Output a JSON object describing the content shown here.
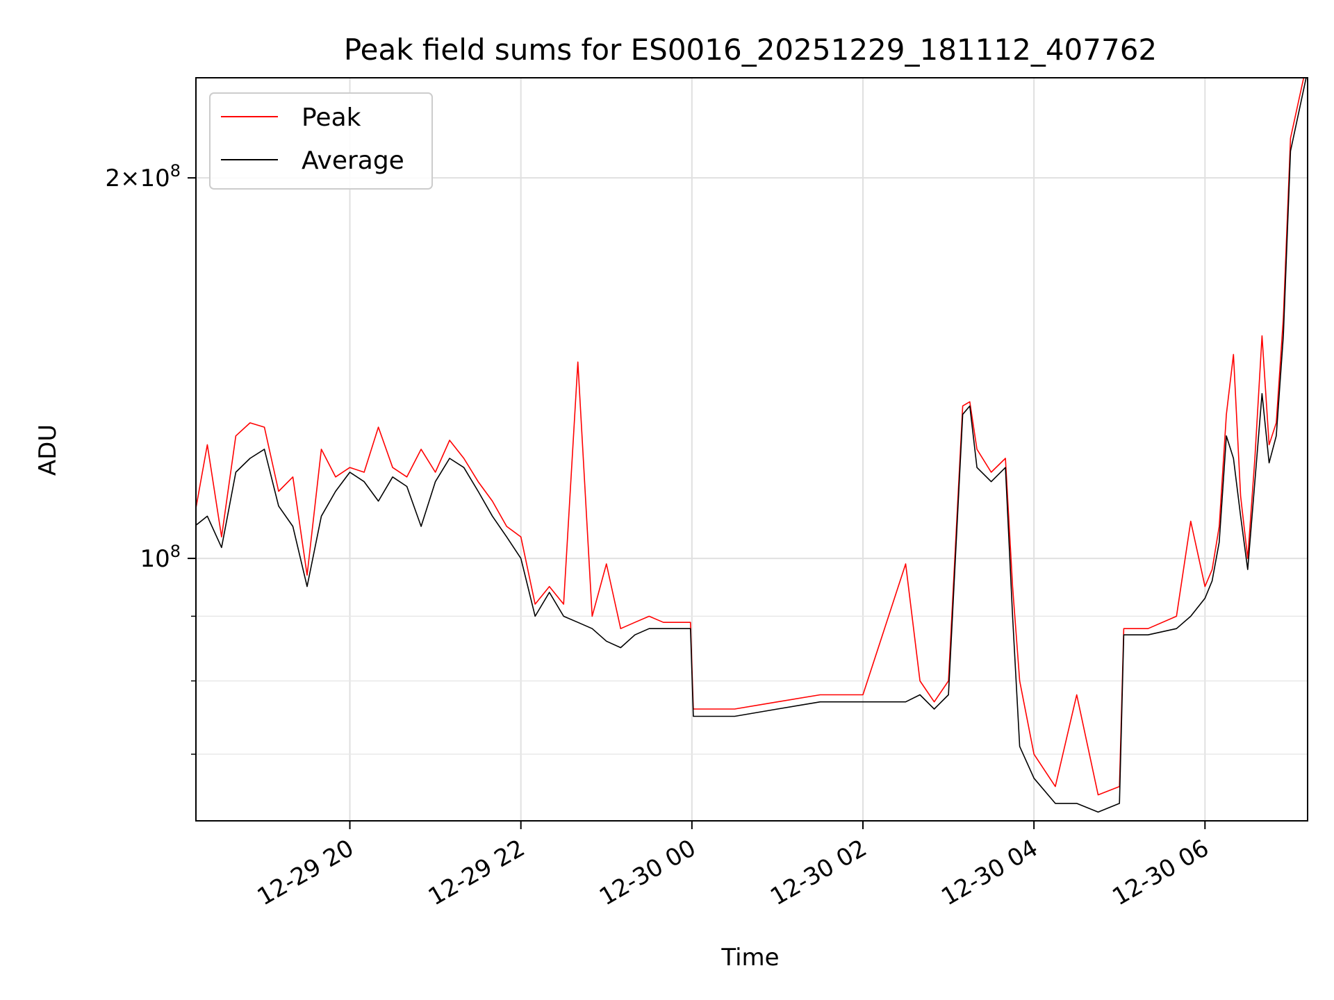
{
  "chart_data": {
    "type": "line",
    "title": "Peak field sums for ES0016_20251229_181112_407762",
    "xlabel": "Time",
    "ylabel": "ADU",
    "x_start": "2025-12-29 18:11",
    "x_end": "2025-12-30 07:11",
    "xlim_hours_from_midnight_dec29": [
      18.2,
      31.2
    ],
    "yscale": "log",
    "ylim": [
      62000000,
      240000000
    ],
    "grid": true,
    "legend_placement": "top-left",
    "x_tick_labels": [
      "12-29 20",
      "12-29 22",
      "12-30 00",
      "12-30 02",
      "12-30 04",
      "12-30 06"
    ],
    "y_tick_labels": [
      "10^8",
      "2×10^8"
    ],
    "colors": {
      "Peak": "#ff0000",
      "Average": "#000000"
    },
    "series": [
      {
        "name": "Average",
        "x": [
          "12-29 18:11",
          "12-29 18:20",
          "12-29 18:30",
          "12-29 18:40",
          "12-29 18:50",
          "12-29 19:00",
          "12-29 19:10",
          "12-29 19:20",
          "12-29 19:30",
          "12-29 19:40",
          "12-29 19:50",
          "12-29 20:00",
          "12-29 20:10",
          "12-29 20:20",
          "12-29 20:30",
          "12-29 20:40",
          "12-29 20:50",
          "12-29 21:00",
          "12-29 21:10",
          "12-29 21:20",
          "12-29 21:30",
          "12-29 21:40",
          "12-29 21:50",
          "12-29 22:00",
          "12-29 22:10",
          "12-29 22:20",
          "12-29 22:30",
          "12-29 22:40",
          "12-29 22:50",
          "12-29 23:00",
          "12-29 23:10",
          "12-29 23:20",
          "12-29 23:30",
          "12-29 23:40",
          "12-29 23:50",
          "12-29 23:59",
          "12-30 00:01",
          "12-30 00:30",
          "12-30 01:00",
          "12-30 01:30",
          "12-30 02:00",
          "12-30 02:30",
          "12-30 02:40",
          "12-30 02:50",
          "12-30 03:00",
          "12-30 03:10",
          "12-30 03:15",
          "12-30 03:20",
          "12-30 03:30",
          "12-30 03:40",
          "12-30 03:45",
          "12-30 03:50",
          "12-30 04:00",
          "12-30 04:15",
          "12-30 04:30",
          "12-30 04:45",
          "12-30 05:00",
          "12-30 05:03",
          "12-30 05:20",
          "12-30 05:40",
          "12-30 05:50",
          "12-30 06:00",
          "12-30 06:05",
          "12-30 06:10",
          "12-30 06:15",
          "12-30 06:20",
          "12-30 06:25",
          "12-30 06:30",
          "12-30 06:35",
          "12-30 06:40",
          "12-30 06:45",
          "12-30 06:50",
          "12-30 06:55",
          "12-30 07:00",
          "12-30 07:11"
        ],
        "y": [
          106000000,
          108000000,
          102000000,
          117000000,
          120000000,
          122000000,
          110000000,
          106000000,
          95000000,
          108000000,
          113000000,
          117000000,
          115000000,
          111000000,
          116000000,
          114000000,
          106000000,
          115000000,
          120000000,
          118000000,
          113000000,
          108000000,
          104000000,
          100000000,
          90000000,
          94000000,
          90000000,
          89000000,
          88000000,
          86000000,
          85000000,
          87000000,
          88000000,
          88000000,
          88000000,
          88000000,
          75000000,
          75000000,
          76000000,
          77000000,
          77000000,
          77000000,
          78000000,
          76000000,
          78000000,
          130000000,
          132000000,
          118000000,
          115000000,
          118000000,
          90000000,
          71000000,
          67000000,
          64000000,
          64000000,
          63000000,
          64000000,
          87000000,
          87000000,
          88000000,
          90000000,
          93000000,
          96000000,
          103000000,
          125000000,
          120000000,
          108000000,
          98000000,
          115000000,
          135000000,
          119000000,
          125000000,
          150000000,
          210000000,
          240000000
        ]
      },
      {
        "name": "Peak",
        "x": [
          "12-29 18:11",
          "12-29 18:20",
          "12-29 18:30",
          "12-29 18:40",
          "12-29 18:50",
          "12-29 19:00",
          "12-29 19:10",
          "12-29 19:20",
          "12-29 19:30",
          "12-29 19:40",
          "12-29 19:50",
          "12-29 20:00",
          "12-29 20:10",
          "12-29 20:20",
          "12-29 20:30",
          "12-29 20:40",
          "12-29 20:50",
          "12-29 21:00",
          "12-29 21:10",
          "12-29 21:20",
          "12-29 21:30",
          "12-29 21:40",
          "12-29 21:50",
          "12-29 22:00",
          "12-29 22:10",
          "12-29 22:20",
          "12-29 22:30",
          "12-29 22:40",
          "12-29 22:50",
          "12-29 23:00",
          "12-29 23:10",
          "12-29 23:20",
          "12-29 23:30",
          "12-29 23:40",
          "12-29 23:50",
          "12-29 23:59",
          "12-30 00:01",
          "12-30 00:30",
          "12-30 01:00",
          "12-30 01:30",
          "12-30 02:00",
          "12-30 02:30",
          "12-30 02:40",
          "12-30 02:50",
          "12-30 03:00",
          "12-30 03:10",
          "12-30 03:15",
          "12-30 03:20",
          "12-30 03:30",
          "12-30 03:40",
          "12-30 03:45",
          "12-30 03:50",
          "12-30 04:00",
          "12-30 04:15",
          "12-30 04:30",
          "12-30 04:45",
          "12-30 05:00",
          "12-30 05:03",
          "12-30 05:20",
          "12-30 05:40",
          "12-30 05:50",
          "12-30 06:00",
          "12-30 06:05",
          "12-30 06:10",
          "12-30 06:15",
          "12-30 06:20",
          "12-30 06:25",
          "12-30 06:30",
          "12-30 06:35",
          "12-30 06:40",
          "12-30 06:45",
          "12-30 06:50",
          "12-30 06:55",
          "12-30 07:00",
          "12-30 07:11"
        ],
        "y": [
          108000000,
          123000000,
          104000000,
          125000000,
          128000000,
          127000000,
          113000000,
          116000000,
          97000000,
          122000000,
          116000000,
          118000000,
          117000000,
          127000000,
          118000000,
          116000000,
          122000000,
          117000000,
          124000000,
          120000000,
          115000000,
          111000000,
          106000000,
          104000000,
          92000000,
          95000000,
          92000000,
          143000000,
          90000000,
          99000000,
          88000000,
          89000000,
          90000000,
          89000000,
          89000000,
          89000000,
          76000000,
          76000000,
          77000000,
          78000000,
          78000000,
          99000000,
          80000000,
          77000000,
          80000000,
          132000000,
          133000000,
          122000000,
          117000000,
          120000000,
          95000000,
          80000000,
          70000000,
          66000000,
          78000000,
          65000000,
          66000000,
          88000000,
          88000000,
          90000000,
          107000000,
          95000000,
          98000000,
          106000000,
          130000000,
          145000000,
          112000000,
          100000000,
          120000000,
          150000000,
          123000000,
          128000000,
          155000000,
          215000000,
          245000000
        ]
      }
    ]
  }
}
